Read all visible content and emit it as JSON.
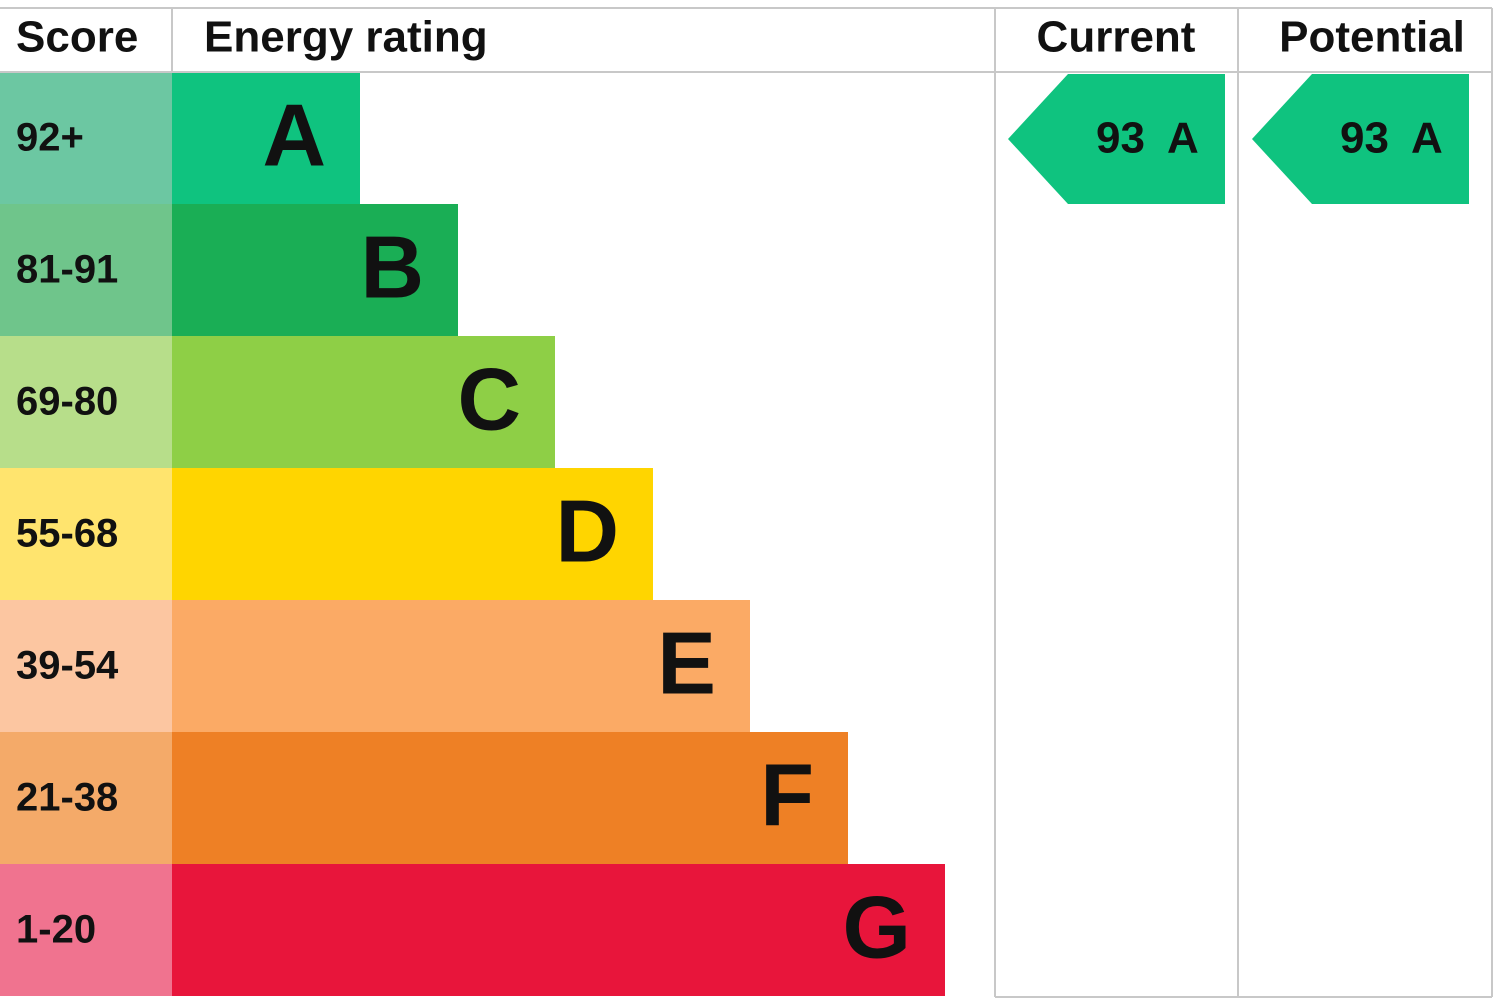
{
  "header": {
    "score": "Score",
    "rating": "Energy rating",
    "current": "Current",
    "potential": "Potential"
  },
  "rows": [
    {
      "score": "92+",
      "letter": "A"
    },
    {
      "score": "81-91",
      "letter": "B"
    },
    {
      "score": "69-80",
      "letter": "C"
    },
    {
      "score": "55-68",
      "letter": "D"
    },
    {
      "score": "39-54",
      "letter": "E"
    },
    {
      "score": "21-38",
      "letter": "F"
    },
    {
      "score": "1-20",
      "letter": "G"
    }
  ],
  "current": {
    "value": 93,
    "letter": "A"
  },
  "potential": {
    "value": 93,
    "letter": "A"
  }
}
